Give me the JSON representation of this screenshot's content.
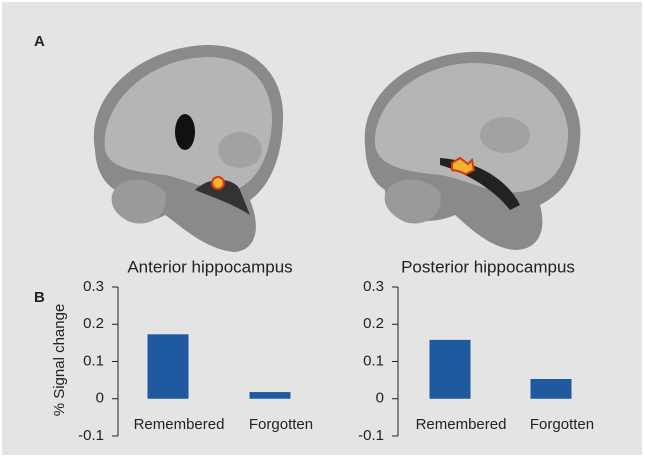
{
  "panel_labels": [
    "A",
    "B"
  ],
  "images": [
    {
      "caption": "Anterior hippocampus"
    },
    {
      "caption": "Posterior hippocampus"
    }
  ],
  "chart_data": [
    {
      "type": "bar",
      "y_label": "% Signal change",
      "categories": [
        "Remembered",
        "Forgotten"
      ],
      "values": [
        0.173,
        0.018
      ],
      "color": "#1f5aa0",
      "ylim": [
        -0.1,
        0.3
      ],
      "yticks": [
        -0.1,
        0,
        0.1,
        0.2,
        0.3
      ]
    },
    {
      "type": "bar",
      "categories": [
        "Remembered",
        "Forgotten"
      ],
      "values": [
        0.158,
        0.053
      ],
      "color": "#1f5aa0",
      "ylim": [
        -0.1,
        0.3
      ],
      "yticks": [
        -0.1,
        0,
        0.1,
        0.2,
        0.3
      ]
    }
  ]
}
